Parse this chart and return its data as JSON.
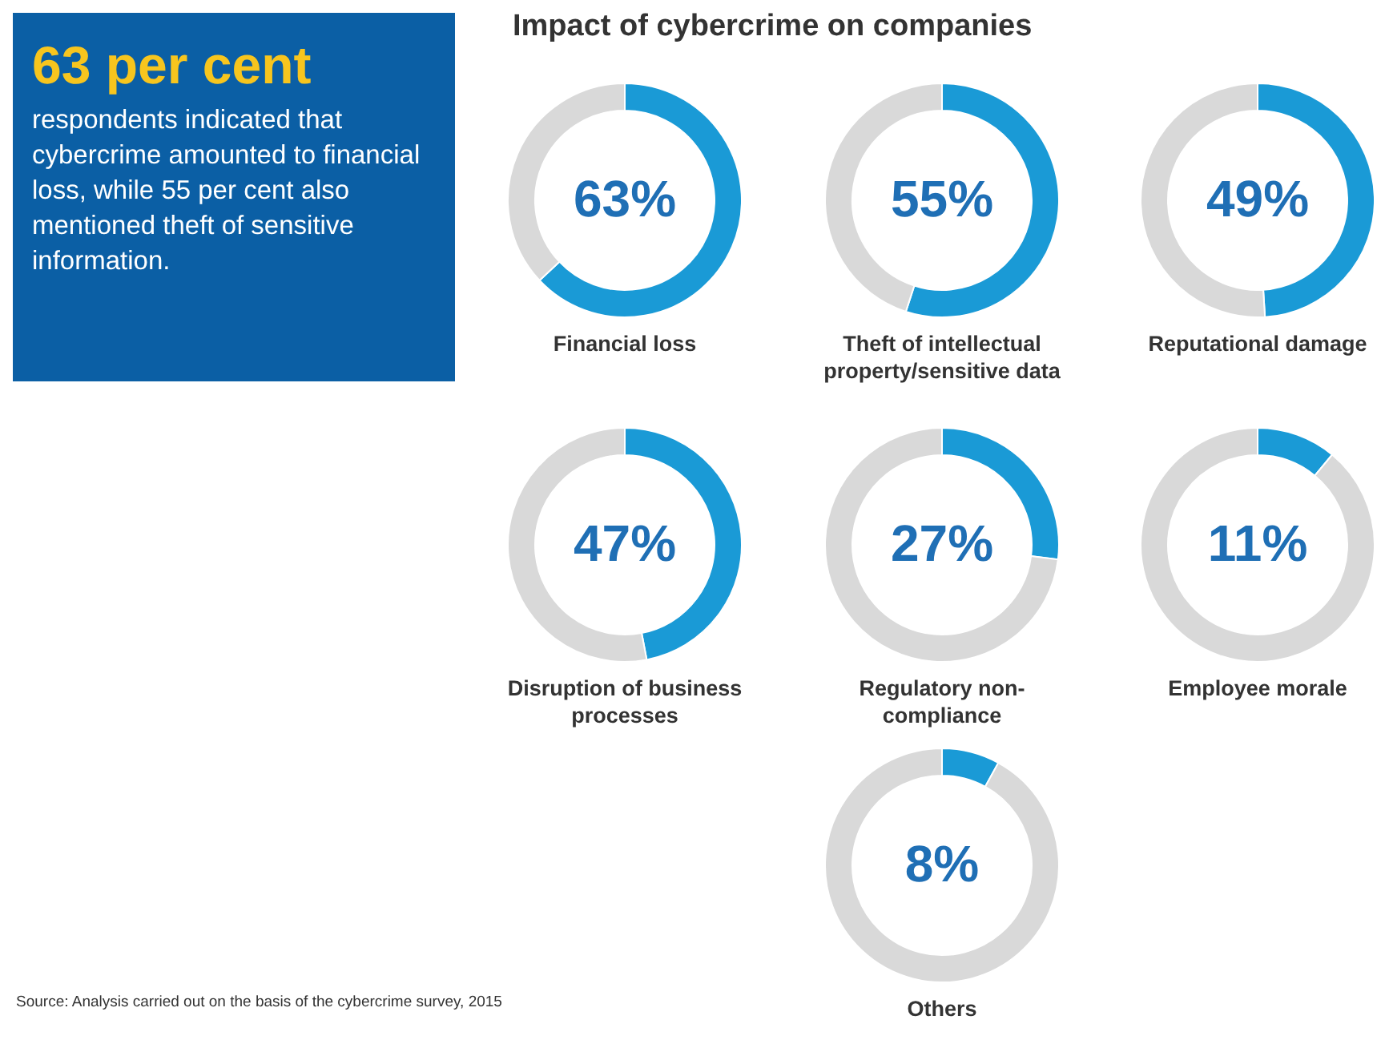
{
  "chart_data": [
    {
      "type": "other",
      "title": "63 per cent",
      "subtitle": "respondents indicated that cybercrime amounted to financial loss, while 55 per cent also mentioned theft of sensitive information.",
      "annotations": [
        "Source: Analysis carried out on the basis of the cybercrime survey, 2015"
      ]
    },
    {
      "type": "other",
      "title": "Impact of cybercrime on companies"
    },
    {
      "type": "donut",
      "title": "Financial loss",
      "categories": [
        null,
        null
      ],
      "values": [
        63,
        37
      ],
      "colors": [
        "#1a9ad6",
        "#d9d9d9"
      ],
      "value_labels": [
        "63%",
        null
      ]
    },
    {
      "type": "donut",
      "title": "Theft of intellectual property/sensitive data",
      "categories": [
        null,
        null
      ],
      "values": [
        55,
        45
      ],
      "colors": [
        "#1a9ad6",
        "#d9d9d9"
      ],
      "value_labels": [
        "55%",
        null
      ]
    },
    {
      "type": "donut",
      "title": "Reputational damage",
      "categories": [
        null,
        null
      ],
      "values": [
        49,
        51
      ],
      "colors": [
        "#1a9ad6",
        "#d9d9d9"
      ],
      "value_labels": [
        "49%",
        null
      ]
    },
    {
      "type": "donut",
      "title": "Disruption of business processes",
      "categories": [
        null,
        null
      ],
      "values": [
        47,
        53
      ],
      "colors": [
        "#1a9ad6",
        "#d9d9d9"
      ],
      "value_labels": [
        "47%",
        null
      ]
    },
    {
      "type": "donut",
      "title": "Regulatory non-compliance",
      "categories": [
        null,
        null
      ],
      "values": [
        27,
        73
      ],
      "colors": [
        "#1a9ad6",
        "#d9d9d9"
      ],
      "value_labels": [
        "27%",
        null
      ]
    },
    {
      "type": "donut",
      "title": "Employee morale",
      "categories": [
        null,
        null
      ],
      "values": [
        11,
        89
      ],
      "colors": [
        "#1a9ad6",
        "#d9d9d9"
      ],
      "value_labels": [
        "11%",
        null
      ]
    },
    {
      "type": "donut",
      "title": "Others",
      "categories": [
        null,
        null
      ],
      "values": [
        8,
        92
      ],
      "colors": [
        "#1a9ad6",
        "#d9d9d9"
      ],
      "value_labels": [
        "8%",
        null
      ]
    }
  ]
}
